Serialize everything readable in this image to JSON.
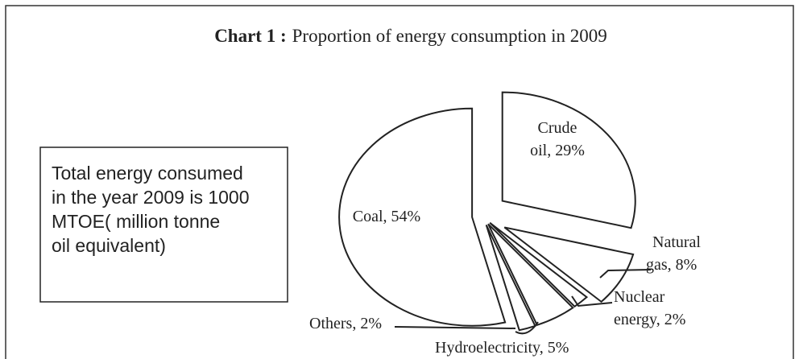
{
  "chart_data": {
    "type": "pie",
    "chart_label": "Chart 1 :",
    "title": "Proportion of energy consumption in 2009",
    "labels": [
      [
        "Crude",
        "oil, 29%"
      ],
      [
        "Natural",
        "gas, 8%"
      ],
      [
        "Nuclear",
        "energy, 2%"
      ],
      [
        "Hydroelectricity, 5%"
      ],
      [
        "Others, 2%"
      ],
      [
        "Coal, 54%"
      ]
    ],
    "values": [
      29,
      8,
      2,
      5,
      2,
      54
    ],
    "color": "#ffffff",
    "annotation": [
      "Total energy consumed",
      "in the year 2009 is 1000",
      "MTOE( million tonne",
      "oil equivalent)"
    ]
  }
}
